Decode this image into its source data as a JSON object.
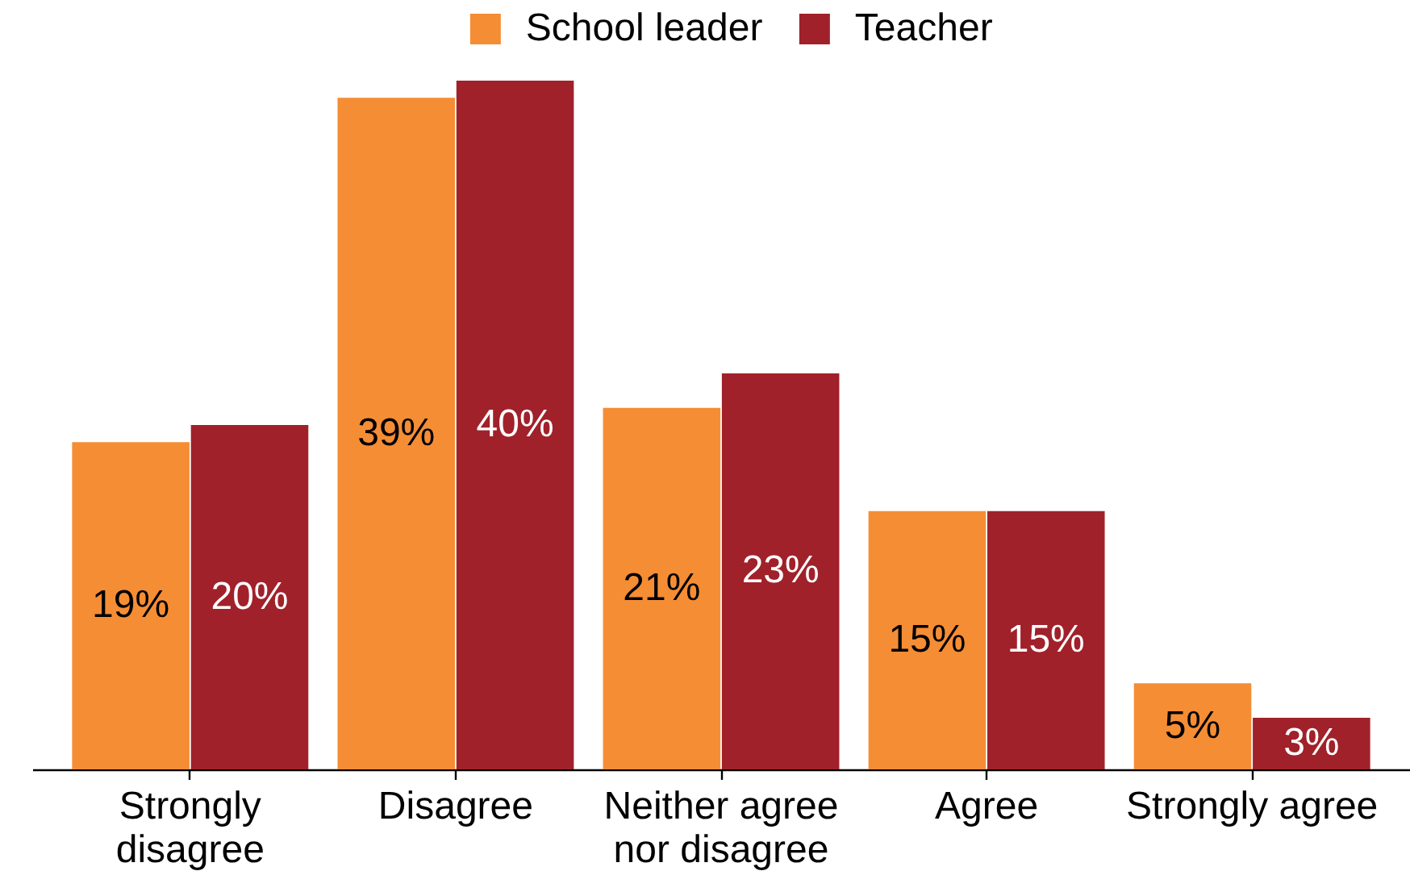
{
  "chart_data": {
    "type": "bar",
    "categories": [
      "Strongly disagree",
      "Disagree",
      "Neither agree nor disagree",
      "Agree",
      "Strongly agree"
    ],
    "series": [
      {
        "name": "School leader",
        "color": "#f58d35",
        "values": [
          19,
          39,
          21,
          15,
          5
        ],
        "value_labels": [
          "19%",
          "39%",
          "21%",
          "15%",
          "5%"
        ]
      },
      {
        "name": "Teacher",
        "color": "#a0212a",
        "values": [
          20,
          40,
          23,
          15,
          3
        ],
        "value_labels": [
          "20%",
          "40%",
          "23%",
          "15%",
          "3%"
        ]
      }
    ],
    "legend": "top"
  }
}
